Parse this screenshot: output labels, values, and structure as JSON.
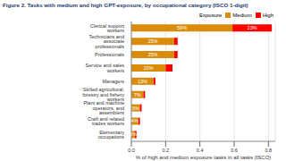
{
  "chart_data": {
    "type": "bar",
    "title": "Figure 2. Tasks with medium and high GPT-exposure, by occupational category (ISCO 1-digit)",
    "x_label": "% of high and medium exposure tasks in all tasks (ISCO)",
    "legend_title": "Exposure",
    "legend": "top",
    "orientation": "horizontal",
    "stacked": true,
    "grid": true,
    "data_labels": true,
    "categories": [
      "Clerical support workers",
      "Technicians and associate professionals",
      "Professionals",
      "Service and sales workers",
      "Managers",
      "Skilled agricultural, forestry and fishery workers",
      "Plant and machine operators, and assemblers",
      "Craft and related trades workers",
      "Elementary occupations"
    ],
    "series": [
      {
        "name": "Medium",
        "color": "#d98b0a",
        "values": [
          0.59,
          0.25,
          0.25,
          0.2,
          0.13,
          0.07,
          0.05,
          0.04,
          0.02
        ],
        "value_labels": [
          "59%",
          "25%",
          "25%",
          "20%",
          "13%",
          "7%",
          "5%",
          "4%",
          "2%"
        ]
      },
      {
        "name": "High",
        "color": "#ff0000",
        "values": [
          0.23,
          0.02,
          0.02,
          0.04,
          0.01,
          0.01,
          0.01,
          0.01,
          0.01
        ],
        "value_labels": [
          "23%",
          null,
          null,
          null,
          null,
          null,
          null,
          null,
          null
        ]
      }
    ],
    "xlim": [
      0,
      0.84
    ],
    "xticks": [
      {
        "value": 0,
        "label": "0.0"
      },
      0.2,
      0.4,
      0.6,
      0.8
    ]
  }
}
